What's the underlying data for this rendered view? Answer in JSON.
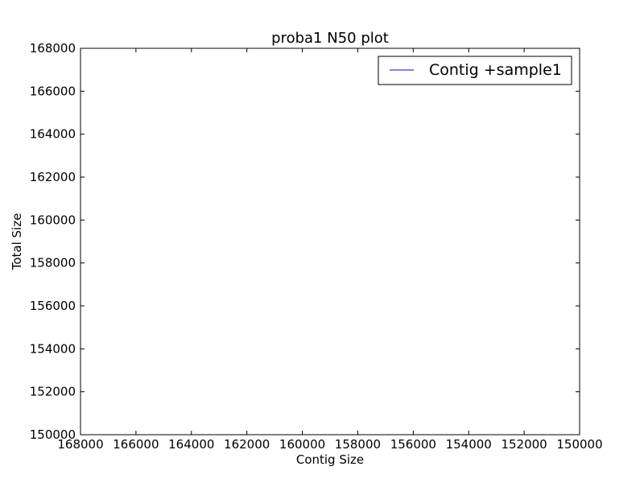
{
  "chart_data": {
    "type": "line",
    "title": "proba1 N50 plot",
    "xlabel": "Contig Size",
    "ylabel": "Total Size",
    "xlim": [
      168000,
      150000
    ],
    "ylim": [
      150000,
      168000
    ],
    "x_ticks": [
      168000,
      166000,
      164000,
      162000,
      160000,
      158000,
      156000,
      154000,
      152000,
      150000
    ],
    "y_ticks": [
      150000,
      152000,
      154000,
      156000,
      158000,
      160000,
      162000,
      164000,
      166000,
      168000
    ],
    "grid": false,
    "legend_position": "top-right",
    "series": [
      {
        "name": "Contig +sample1",
        "color": "#0000ff",
        "x": [],
        "y": []
      }
    ]
  }
}
